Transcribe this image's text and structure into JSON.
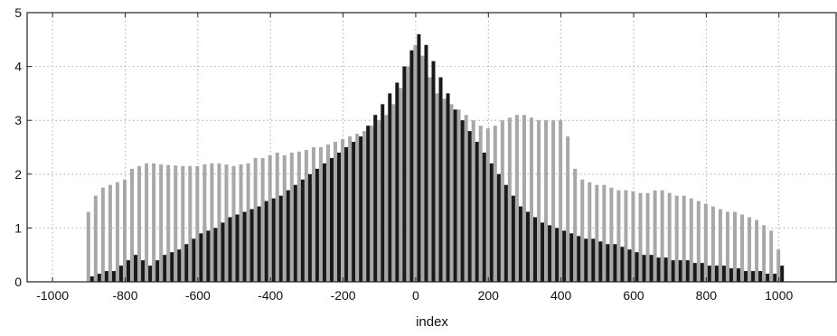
{
  "chart_data": {
    "type": "bar",
    "title": "",
    "xlabel": "index",
    "ylabel": "",
    "xlim": [
      -1070,
      1160
    ],
    "ylim": [
      0,
      5
    ],
    "grid": true,
    "x_ticks": [
      -1000,
      -800,
      -600,
      -400,
      -200,
      0,
      200,
      400,
      600,
      800,
      1000
    ],
    "x_tick_labels": [
      "-1000",
      "-800",
      "-600",
      "-400",
      "-200",
      "0",
      "200",
      "400",
      "600",
      "800",
      "1000"
    ],
    "y_ticks": [
      0,
      1,
      2,
      3,
      4,
      5
    ],
    "y_tick_labels": [
      "0",
      "1",
      "2",
      "3",
      "4",
      "5"
    ],
    "series": [
      {
        "color": "#a8a8a8",
        "x": [
          -900,
          -880,
          -860,
          -840,
          -820,
          -800,
          -780,
          -760,
          -740,
          -720,
          -700,
          -680,
          -660,
          -640,
          -620,
          -600,
          -580,
          -560,
          -540,
          -520,
          -500,
          -480,
          -460,
          -440,
          -420,
          -400,
          -380,
          -360,
          -340,
          -320,
          -300,
          -280,
          -260,
          -240,
          -220,
          -200,
          -180,
          -160,
          -140,
          -120,
          -100,
          -80,
          -60,
          -40,
          -20,
          0,
          20,
          40,
          60,
          80,
          100,
          120,
          140,
          160,
          180,
          200,
          220,
          240,
          260,
          280,
          300,
          320,
          340,
          360,
          380,
          400,
          420,
          440,
          460,
          480,
          500,
          520,
          540,
          560,
          580,
          600,
          620,
          640,
          660,
          680,
          700,
          720,
          740,
          760,
          780,
          800,
          820,
          840,
          860,
          880,
          900,
          920,
          940,
          960,
          980,
          1000
        ],
        "values": [
          1.3,
          1.6,
          1.75,
          1.8,
          1.85,
          1.9,
          2.1,
          2.15,
          2.2,
          2.2,
          2.18,
          2.17,
          2.16,
          2.15,
          2.15,
          2.15,
          2.18,
          2.2,
          2.2,
          2.18,
          2.15,
          2.18,
          2.2,
          2.3,
          2.3,
          2.35,
          2.4,
          2.35,
          2.4,
          2.42,
          2.45,
          2.5,
          2.5,
          2.55,
          2.6,
          2.65,
          2.7,
          2.75,
          2.8,
          2.9,
          3.0,
          3.1,
          3.3,
          3.6,
          4.0,
          4.4,
          4.2,
          3.8,
          3.5,
          3.4,
          3.3,
          3.2,
          3.1,
          3.0,
          2.9,
          2.85,
          2.9,
          3.0,
          3.05,
          3.1,
          3.1,
          3.05,
          3.0,
          3.0,
          3.0,
          3.0,
          2.7,
          2.1,
          1.9,
          1.85,
          1.8,
          1.8,
          1.75,
          1.7,
          1.7,
          1.68,
          1.65,
          1.65,
          1.7,
          1.7,
          1.65,
          1.6,
          1.6,
          1.55,
          1.5,
          1.45,
          1.4,
          1.35,
          1.3,
          1.3,
          1.25,
          1.2,
          1.15,
          1.05,
          0.95,
          0.6
        ]
      },
      {
        "color": "#1a1a1a",
        "x": [
          -900,
          -880,
          -860,
          -840,
          -820,
          -800,
          -780,
          -760,
          -740,
          -720,
          -700,
          -680,
          -660,
          -640,
          -620,
          -600,
          -580,
          -560,
          -540,
          -520,
          -500,
          -480,
          -460,
          -440,
          -420,
          -400,
          -380,
          -360,
          -340,
          -320,
          -300,
          -280,
          -260,
          -240,
          -220,
          -200,
          -180,
          -160,
          -140,
          -120,
          -100,
          -80,
          -60,
          -40,
          -20,
          0,
          20,
          40,
          60,
          80,
          100,
          120,
          140,
          160,
          180,
          200,
          220,
          240,
          260,
          280,
          300,
          320,
          340,
          360,
          380,
          400,
          420,
          440,
          460,
          480,
          500,
          520,
          540,
          560,
          580,
          600,
          620,
          640,
          660,
          680,
          700,
          720,
          740,
          760,
          780,
          800,
          820,
          840,
          860,
          880,
          900,
          920,
          940,
          960,
          980,
          1000
        ],
        "values": [
          0.1,
          0.15,
          0.2,
          0.2,
          0.3,
          0.4,
          0.5,
          0.4,
          0.3,
          0.4,
          0.5,
          0.55,
          0.6,
          0.7,
          0.8,
          0.9,
          0.95,
          1.0,
          1.1,
          1.2,
          1.25,
          1.3,
          1.35,
          1.4,
          1.5,
          1.55,
          1.6,
          1.7,
          1.8,
          1.9,
          2.0,
          2.1,
          2.2,
          2.3,
          2.4,
          2.5,
          2.6,
          2.7,
          2.9,
          3.1,
          3.3,
          3.5,
          3.7,
          4.0,
          4.3,
          4.6,
          4.4,
          4.1,
          3.8,
          3.5,
          3.2,
          3.0,
          2.8,
          2.6,
          2.4,
          2.2,
          2.0,
          1.8,
          1.6,
          1.4,
          1.3,
          1.2,
          1.1,
          1.05,
          1.0,
          0.95,
          0.9,
          0.85,
          0.8,
          0.8,
          0.75,
          0.7,
          0.7,
          0.65,
          0.6,
          0.55,
          0.5,
          0.5,
          0.45,
          0.45,
          0.4,
          0.4,
          0.4,
          0.35,
          0.35,
          0.3,
          0.3,
          0.3,
          0.25,
          0.25,
          0.2,
          0.2,
          0.2,
          0.15,
          0.15,
          0.3
        ]
      }
    ]
  }
}
